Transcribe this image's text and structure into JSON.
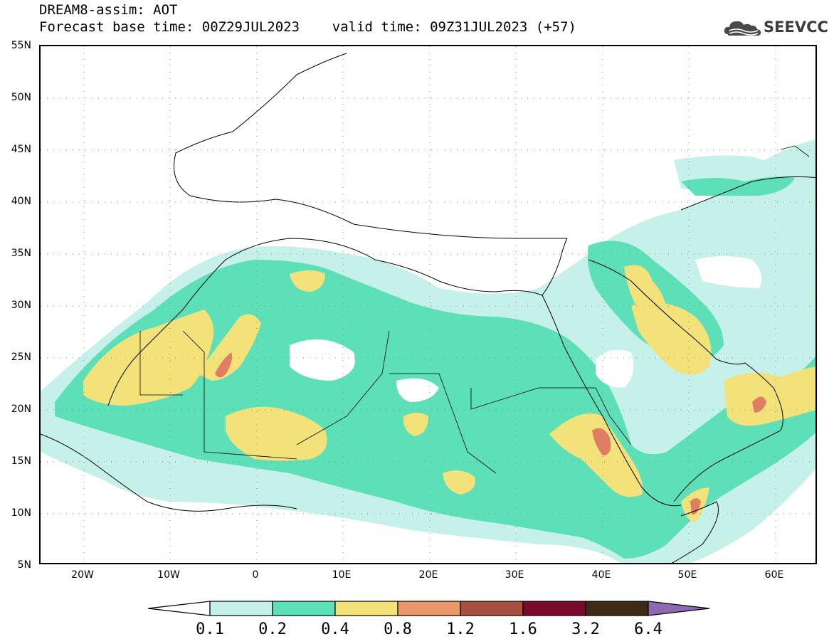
{
  "title": {
    "line1": "DREAM8-assim: AOT",
    "line2": "Forecast base time: 00Z29JUL2023    valid time: 09Z31JUL2023 (+57)"
  },
  "logo": {
    "text": "SEEVCCC",
    "icon": "cloud-icon"
  },
  "axes": {
    "lat_labels": [
      "55N",
      "50N",
      "45N",
      "40N",
      "35N",
      "30N",
      "25N",
      "20N",
      "15N",
      "10N",
      "5N"
    ],
    "lon_labels": [
      "20W",
      "10W",
      "0",
      "10E",
      "20E",
      "30E",
      "40E",
      "50E",
      "60E"
    ],
    "lat_range": [
      5,
      55
    ],
    "lon_range": [
      -25,
      65
    ]
  },
  "colorbar": {
    "labels": [
      "0.1",
      "0.2",
      "0.4",
      "0.8",
      "1.2",
      "1.6",
      "3.2",
      "6.4"
    ],
    "colors": [
      "#ffffff",
      "#c6f1ea",
      "#5ddfb8",
      "#f3e27a",
      "#e8966a",
      "#a8503f",
      "#7a0a2c",
      "#3d2a17",
      "#8d6ab0"
    ]
  },
  "palette": {
    "c1": "#c6f1ea",
    "c2": "#5ddfb8",
    "c3": "#f3e27a",
    "c4": "#e07d63"
  }
}
